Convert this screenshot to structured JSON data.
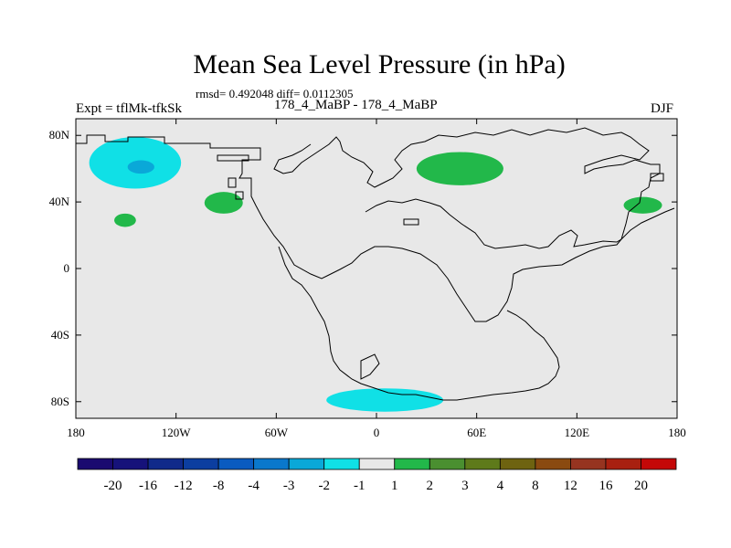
{
  "chart_data": {
    "type": "heatmap",
    "title": "Mean Sea Level Pressure (in hPa)",
    "stats_text": "rmsd= 0.492048 diff= 0.0112305",
    "left_label": "Expt = tflMk-tfkSk",
    "center_label": "178_4_MaBP - 178_4_MaBP",
    "right_label": "DJF",
    "x_ticks": [
      "180",
      "120W",
      "60W",
      "0",
      "60E",
      "120E",
      "180"
    ],
    "y_ticks": [
      "80N",
      "40N",
      "0",
      "40S",
      "80S"
    ],
    "xlim": [
      -180,
      180
    ],
    "ylim": [
      -90,
      90
    ],
    "colorbar_labels": [
      "-20",
      "-16",
      "-12",
      "-8",
      "-4",
      "-3",
      "-2",
      "-1",
      "1",
      "2",
      "3",
      "4",
      "8",
      "12",
      "16",
      "20"
    ],
    "colorbar_colors": [
      "#1a0a70",
      "#16127a",
      "#102a8a",
      "#0c3ea0",
      "#0a5bc0",
      "#0a78cc",
      "#0aa8d8",
      "#10e0e6",
      "#e8e8e8",
      "#22b84a",
      "#4a8f30",
      "#5e7a1a",
      "#6e6310",
      "#8a4a10",
      "#963420",
      "#a82010",
      "#c40808"
    ],
    "anomalies": [
      {
        "name": "n-pacific-low",
        "level": "-1",
        "color": "#10e0e6",
        "lon": [
          -172,
          -117
        ],
        "lat": [
          48,
          79
        ]
      },
      {
        "name": "n-pacific-low-core",
        "level": "-2",
        "color": "#0aa8d8",
        "lon": [
          -149,
          -133
        ],
        "lat": [
          57,
          65
        ]
      },
      {
        "name": "n-pacific-high",
        "level": "1",
        "color": "#22b84a",
        "lon": [
          -157,
          -144
        ],
        "lat": [
          25,
          33
        ]
      },
      {
        "name": "n-america-high",
        "level": "1",
        "color": "#22b84a",
        "lon": [
          -103,
          -80
        ],
        "lat": [
          33,
          46
        ]
      },
      {
        "name": "eurasia-high",
        "level": "1",
        "color": "#22b84a",
        "lon": [
          24,
          76
        ],
        "lat": [
          50,
          70
        ]
      },
      {
        "name": "ne-asia-high",
        "level": "1",
        "color": "#22b84a",
        "lon": [
          148,
          171
        ],
        "lat": [
          33,
          43
        ]
      },
      {
        "name": "southern-low",
        "level": "-1",
        "color": "#10e0e6",
        "lon": [
          -30,
          40
        ],
        "lat": [
          -86,
          -72
        ]
      }
    ]
  }
}
